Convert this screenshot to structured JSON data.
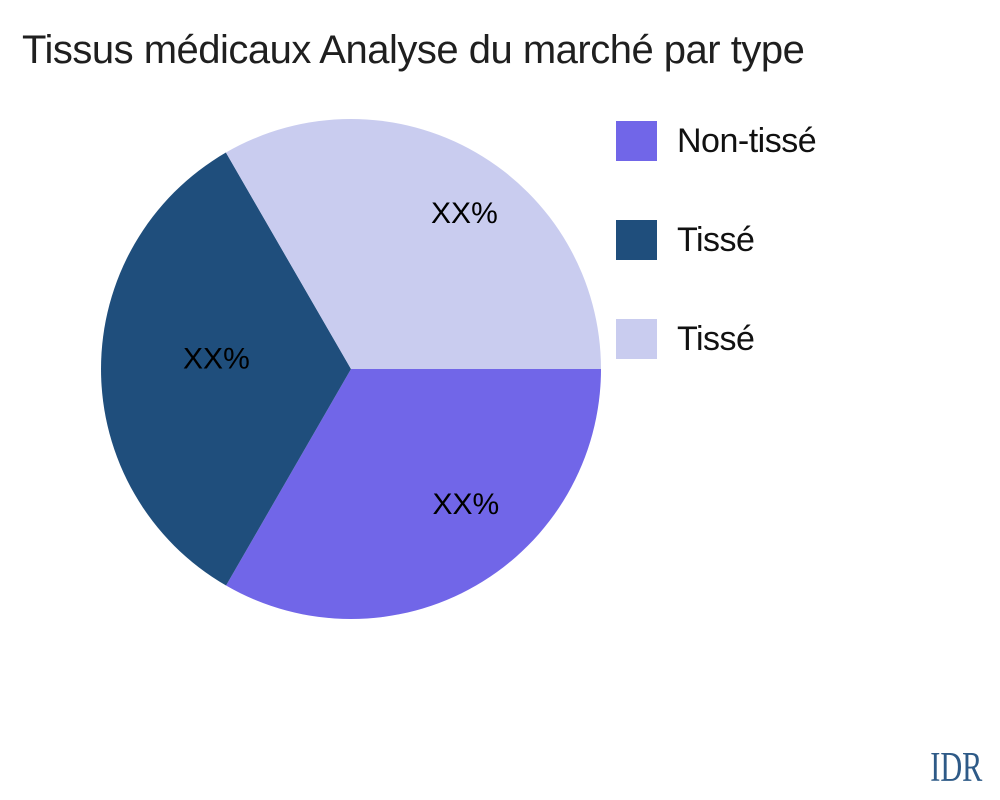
{
  "chart_data": {
    "type": "pie",
    "title": "Tissus médicaux Analyse du marché par type",
    "watermark": "IDR",
    "legend_position": "right",
    "start_angle_deg": 0,
    "direction": "clockwise",
    "slices": [
      {
        "label": "Non-tissé",
        "value": 33.33,
        "pct_label": "XX%",
        "color": "#7166e8",
        "label_angle_deg": -49.7,
        "label_r_frac": 0.71
      },
      {
        "label": "Tissé",
        "value": 33.33,
        "pct_label": "XX%",
        "color": "#1f4e7c",
        "label_angle_deg": 175.8,
        "label_r_frac": 0.54
      },
      {
        "label": "Tissé",
        "value": 33.34,
        "pct_label": "XX%",
        "color": "#c9ccef",
        "label_angle_deg": 53.9,
        "label_r_frac": 0.77
      }
    ],
    "colors": {
      "title_text": "#1f1f1f",
      "legend_text": "#111111",
      "pct_label_text": "#000000",
      "watermark_text": "#2e5a87",
      "background": "#ffffff"
    }
  }
}
